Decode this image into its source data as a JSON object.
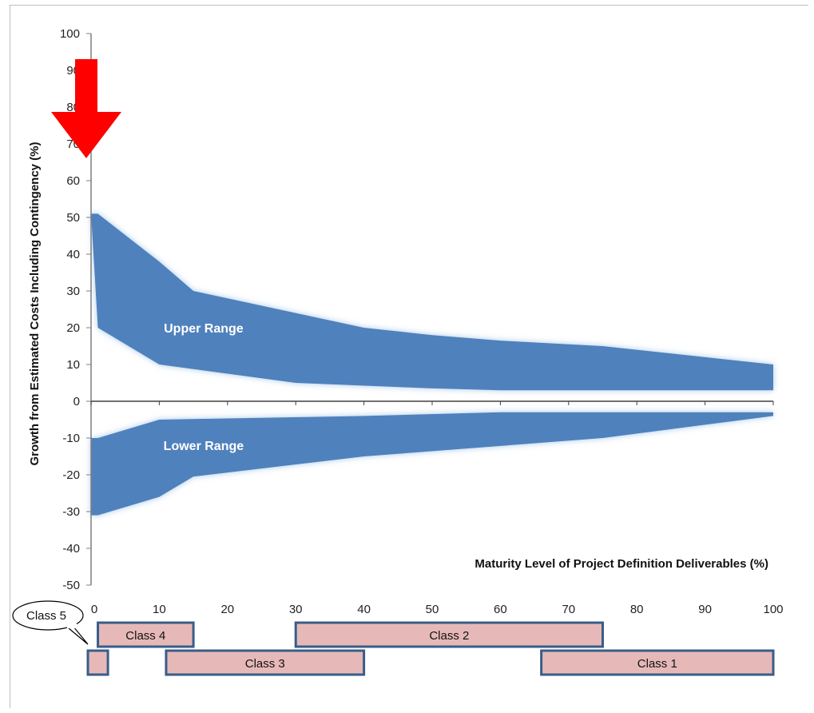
{
  "chart_data": {
    "type": "area",
    "xlabel": "Maturity Level of Project Definition Deliverables (%)",
    "ylabel": "Growth from Estimated Costs Including Contingency (%)",
    "xlim": [
      0,
      100
    ],
    "ylim": [
      -50,
      100
    ],
    "x_ticks": [
      "0",
      "10",
      "20",
      "30",
      "40",
      "50",
      "60",
      "70",
      "80",
      "90",
      "100"
    ],
    "y_ticks": [
      "100",
      "90",
      "80",
      "70",
      "60",
      "50",
      "40",
      "30",
      "20",
      "10",
      "0",
      "-10",
      "-20",
      "-30",
      "-40",
      "-50"
    ],
    "band_color": "#4f81bd",
    "series": [
      {
        "name": "Upper Range",
        "upper": [
          [
            0,
            51
          ],
          [
            1,
            51
          ],
          [
            10,
            38
          ],
          [
            15,
            30
          ],
          [
            30,
            24
          ],
          [
            40,
            20
          ],
          [
            50,
            18
          ],
          [
            60,
            16.5
          ],
          [
            75,
            15
          ],
          [
            100,
            10
          ]
        ],
        "lower": [
          [
            0,
            51
          ],
          [
            1,
            20
          ],
          [
            10,
            10
          ],
          [
            30,
            5
          ],
          [
            50,
            3.5
          ],
          [
            60,
            3
          ],
          [
            100,
            3
          ]
        ]
      },
      {
        "name": "Lower Range",
        "upper": [
          [
            0,
            -10
          ],
          [
            1,
            -10
          ],
          [
            10,
            -5
          ],
          [
            40,
            -4
          ],
          [
            60,
            -3
          ],
          [
            100,
            -3
          ]
        ],
        "lower": [
          [
            0,
            -31
          ],
          [
            1,
            -31
          ],
          [
            10,
            -26
          ],
          [
            15,
            -20.5
          ],
          [
            40,
            -15
          ],
          [
            75,
            -10
          ],
          [
            100,
            -4
          ]
        ]
      }
    ],
    "annotations": {
      "arrow_color": "#ff0000",
      "arrow_target_x": 0,
      "classes": [
        {
          "label": "Class 5",
          "start": 0,
          "end": 2,
          "row": 2,
          "callout": true
        },
        {
          "label": "Class 4",
          "start": 1,
          "end": 15,
          "row": 1
        },
        {
          "label": "Class 3",
          "start": 11,
          "end": 40,
          "row": 2
        },
        {
          "label": "Class 2",
          "start": 30,
          "end": 75,
          "row": 1
        },
        {
          "label": "Class 1",
          "start": 66,
          "end": 100,
          "row": 2
        }
      ],
      "class_fill": "#e6b9b8",
      "class_border": "#385d8a"
    }
  }
}
